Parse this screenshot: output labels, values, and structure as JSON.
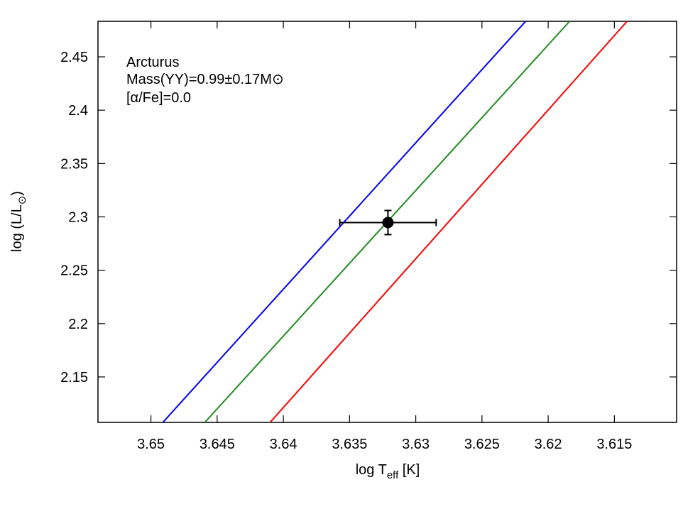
{
  "chart_data": {
    "type": "line",
    "annotation": [
      "Arcturus",
      "Mass(YY)=0.99±0.17M⊙",
      "[α/Fe]=0.0"
    ],
    "xlabel": [
      "log T",
      "eff",
      " [K]"
    ],
    "ylabel": [
      "log (L/L",
      "⊙",
      ")"
    ],
    "xlim": [
      3.654,
      3.6103
    ],
    "ylim": [
      2.1074,
      2.4833
    ],
    "xticks": [
      3.65,
      3.645,
      3.64,
      3.635,
      3.63,
      3.625,
      3.62,
      3.615
    ],
    "yticks": [
      2.15,
      2.2,
      2.25,
      2.3,
      2.35,
      2.4,
      2.45
    ],
    "series": [
      {
        "color": "#0000ff",
        "x": [
          3.6491,
          3.6217
        ],
        "values": [
          2.1074,
          2.4833
        ]
      },
      {
        "color": "#228b22",
        "x": [
          3.64593,
          3.61838
        ],
        "values": [
          2.1074,
          2.4833
        ]
      },
      {
        "color": "#ff0000",
        "x": [
          3.641,
          3.61404
        ],
        "values": [
          2.1074,
          2.4833
        ]
      }
    ],
    "points": [
      {
        "x": 3.6321,
        "y": 2.2947,
        "xerr": 0.00364,
        "yerr": 0.0113,
        "color": "#000000"
      }
    ]
  }
}
